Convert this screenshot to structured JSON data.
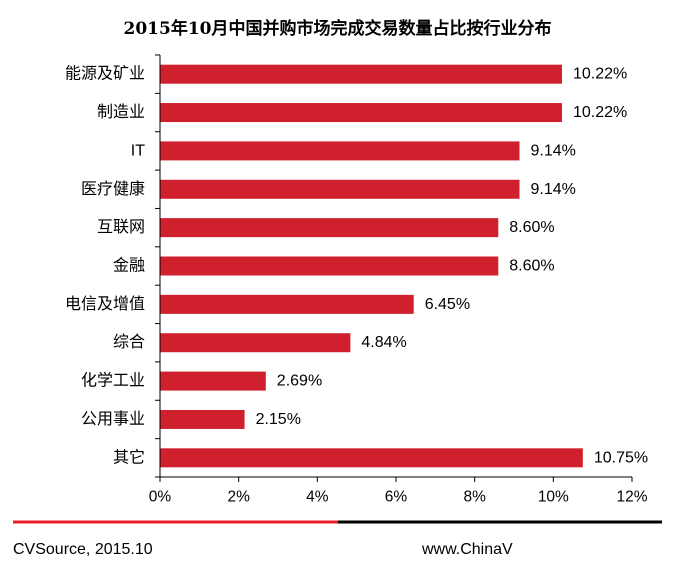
{
  "chart_data": {
    "type": "bar",
    "orientation": "horizontal",
    "title": "2015年10月中国并购市场完成交易数量占比按行业分布",
    "categories": [
      "能源及矿业",
      "制造业",
      "IT",
      "医疗健康",
      "互联网",
      "金融",
      "电信及增值",
      "综合",
      "化学工业",
      "公用事业",
      "其它"
    ],
    "values": [
      10.22,
      10.22,
      9.14,
      9.14,
      8.6,
      8.6,
      6.45,
      4.84,
      2.69,
      2.15,
      10.75
    ],
    "value_labels": [
      "10.22%",
      "10.22%",
      "9.14%",
      "9.14%",
      "8.60%",
      "8.60%",
      "6.45%",
      "4.84%",
      "2.69%",
      "2.15%",
      "10.75%"
    ],
    "x_ticks": [
      "0%",
      "2%",
      "4%",
      "6%",
      "8%",
      "10%",
      "12%"
    ],
    "xlim": [
      0,
      12
    ],
    "grid": false,
    "legend": "none",
    "bar_color": "#d0202e"
  },
  "footer": {
    "source": "CVSource, 2015.10",
    "website": "www.ChinaV",
    "line_colors": [
      "#e8202a",
      "#000000"
    ]
  }
}
